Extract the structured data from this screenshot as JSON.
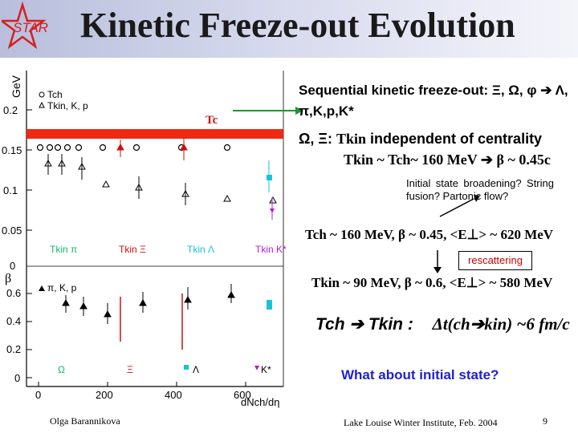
{
  "slide": {
    "title": "Kinetic Freeze-out Evolution",
    "logo_text": "STAR",
    "author": "Olga Barannikova",
    "footer": "Lake Louise Winter Institute, Feb. 2004",
    "page": "9"
  },
  "plot": {
    "top_ylabel": "GeV",
    "top_yticks": [
      "0.2",
      "0.15",
      "0.1",
      "0.05"
    ],
    "bottom_ylabel": "β",
    "bottom_yticks": [
      "0.6",
      "0.4",
      "0.2",
      "0"
    ],
    "xticks": [
      "0",
      "200",
      "400",
      "600"
    ],
    "xlabel": "dNch/dη",
    "tc_label": "Tc",
    "top_legend": [
      "Tch",
      "Tkin, K, p"
    ],
    "mid_legend": [
      "Tkin π",
      "Tkin Ξ",
      "Tkin Λ",
      "Tkin K*"
    ],
    "bottom_legend": [
      "π, K, p",
      "Ω",
      "Ξ",
      "Λ",
      "K*"
    ],
    "colors": {
      "tc_band": "#ee2a12",
      "xi": "#cc1010",
      "lambda": "#19c3d6",
      "kstar": "#b020d8",
      "omega": "#16b868",
      "logo_star": "#d42020"
    }
  },
  "text": {
    "seq": "Sequential kinetic freeze-out: Ξ, Ω, φ ➔ Λ, π,K,p,K*",
    "indep_a": "Ω, Ξ: ",
    "indep_b": "Tkin",
    "indep_c": " independent of centrality",
    "tkin_tch": "Tkin ~ Tch~ 160 MeV ➔ β ~ 0.45c",
    "box_note": "Initial state broadening? String fusion? Partonic flow?",
    "tch_line": "Tch ~ 160 MeV, β ~ 0.45, <E⊥> ~ 620 MeV",
    "rescattering": "rescattering",
    "tkin_line": "Tkin ~ 90 MeV, β ~ 0.6, <E⊥> ~ 580 MeV",
    "tch_tkin_a": "Tch ➔ Tkin :",
    "tch_tkin_b": "Δt(ch➔kin) ~6 fm/c",
    "what": "What about initial state?"
  }
}
